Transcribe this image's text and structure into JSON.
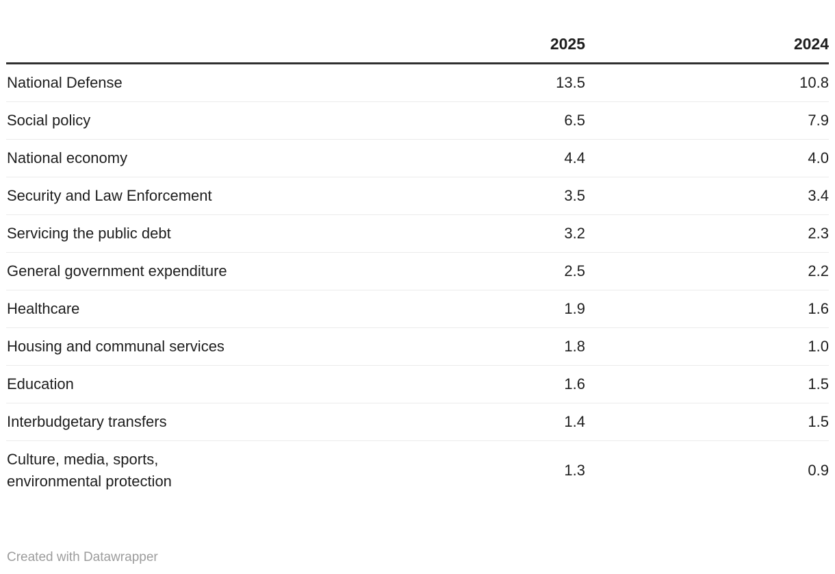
{
  "table": {
    "columns": {
      "category": "",
      "col2025": "2025",
      "col2024": "2024"
    },
    "rows": [
      {
        "label": "National Defense",
        "y2025": "13.5",
        "y2024": "10.8"
      },
      {
        "label": "Social policy",
        "y2025": "6.5",
        "y2024": "7.9"
      },
      {
        "label": "National economy",
        "y2025": "4.4",
        "y2024": "4.0"
      },
      {
        "label": "Security and Law Enforcement",
        "y2025": "3.5",
        "y2024": "3.4"
      },
      {
        "label": "Servicing the public debt",
        "y2025": "3.2",
        "y2024": "2.3"
      },
      {
        "label": "General government expenditure",
        "y2025": "2.5",
        "y2024": "2.2"
      },
      {
        "label": "Healthcare",
        "y2025": "1.9",
        "y2024": "1.6"
      },
      {
        "label": "Housing and communal services",
        "y2025": "1.8",
        "y2024": "1.0"
      },
      {
        "label": "Education",
        "y2025": "1.6",
        "y2024": "1.5"
      },
      {
        "label": "Interbudgetary transfers",
        "y2025": "1.4",
        "y2024": "1.5"
      },
      {
        "label": "Culture, media, sports,\nenvironmental protection",
        "y2025": "1.3",
        "y2024": "0.9"
      }
    ]
  },
  "footer": {
    "attribution": "Created with Datawrapper"
  },
  "colors": {
    "background": "#ffffff",
    "text": "#1d1d1d",
    "header_rule": "#2f2f2f",
    "row_rule": "#ebebeb",
    "attribution_text": "#9c9c9c"
  },
  "chart_data": {
    "type": "table",
    "title": "",
    "categories": [
      "National Defense",
      "Social policy",
      "National economy",
      "Security and Law Enforcement",
      "Servicing the public debt",
      "General government expenditure",
      "Healthcare",
      "Housing and communal services",
      "Education",
      "Interbudgetary transfers",
      "Culture, media, sports, environmental protection"
    ],
    "series": [
      {
        "name": "2025",
        "values": [
          13.5,
          6.5,
          4.4,
          3.5,
          3.2,
          2.5,
          1.9,
          1.8,
          1.6,
          1.4,
          1.3
        ]
      },
      {
        "name": "2024",
        "values": [
          10.8,
          7.9,
          4.0,
          3.4,
          2.3,
          2.2,
          1.6,
          1.0,
          1.5,
          1.5,
          0.9
        ]
      }
    ],
    "layout": {
      "grid": "horizontal-rules-only",
      "legend_position": "none",
      "value_alignment": "right"
    },
    "attribution": "Created with Datawrapper"
  }
}
